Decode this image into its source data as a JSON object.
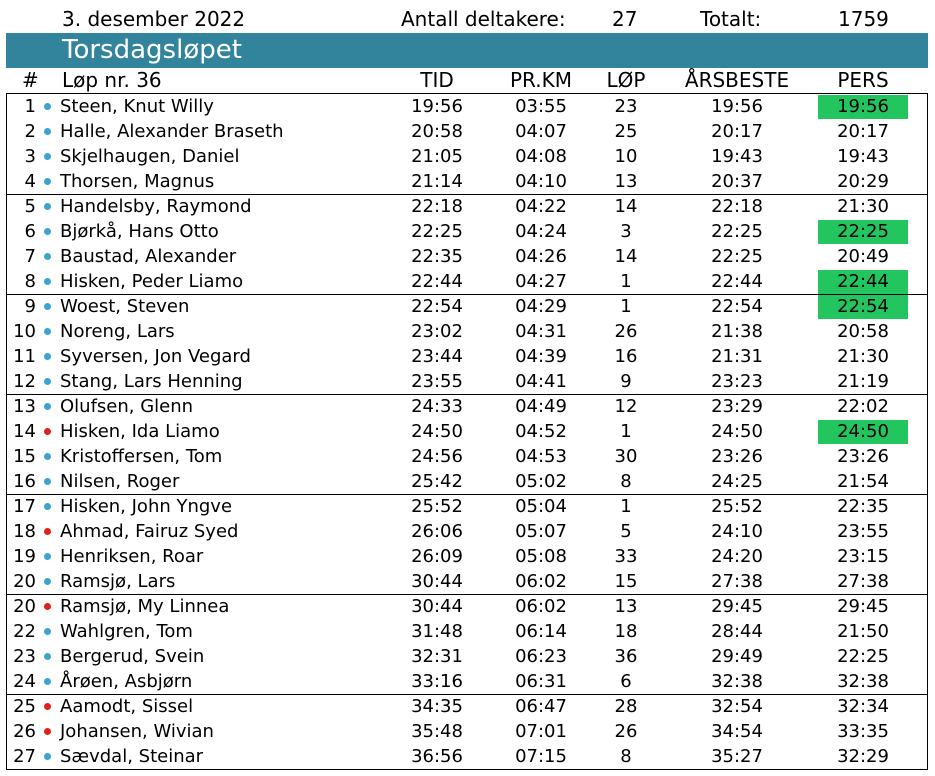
{
  "header": {
    "date": "3. desember 2022",
    "participants_label": "Antall deltakere:",
    "participants_count": "27",
    "total_label": "Totalt:",
    "total_value": "1759",
    "title": "Torsdagsløpet"
  },
  "columns": {
    "rank": "#",
    "race": "Løp nr. 36",
    "time": "TID",
    "per_km": "PR.KM",
    "races": "LØP",
    "season_best": "ÅRSBESTE",
    "personal_best": "PERS"
  },
  "colors": {
    "banner": "#31849b",
    "male_dot": "#3ba3d0",
    "female_dot": "#e0201b",
    "pb_highlight": "#22c55e"
  },
  "rows": [
    {
      "rank": "1",
      "name": "Steen, Knut Willy",
      "gender": "m",
      "time": "19:56",
      "pace": "03:55",
      "races": "23",
      "season": "19:56",
      "pers": "19:56",
      "pb": true
    },
    {
      "rank": "2",
      "name": "Halle, Alexander Braseth",
      "gender": "m",
      "time": "20:58",
      "pace": "04:07",
      "races": "25",
      "season": "20:17",
      "pers": "20:17",
      "pb": false
    },
    {
      "rank": "3",
      "name": "Skjelhaugen, Daniel",
      "gender": "m",
      "time": "21:05",
      "pace": "04:08",
      "races": "10",
      "season": "19:43",
      "pers": "19:43",
      "pb": false
    },
    {
      "rank": "4",
      "name": "Thorsen, Magnus",
      "gender": "m",
      "time": "21:14",
      "pace": "04:10",
      "races": "13",
      "season": "20:37",
      "pers": "20:29",
      "pb": false
    },
    {
      "rank": "5",
      "name": "Handelsby, Raymond",
      "gender": "m",
      "time": "22:18",
      "pace": "04:22",
      "races": "14",
      "season": "22:18",
      "pers": "21:30",
      "pb": false
    },
    {
      "rank": "6",
      "name": "Bjørkå, Hans Otto",
      "gender": "m",
      "time": "22:25",
      "pace": "04:24",
      "races": "3",
      "season": "22:25",
      "pers": "22:25",
      "pb": true
    },
    {
      "rank": "7",
      "name": "Baustad, Alexander",
      "gender": "m",
      "time": "22:35",
      "pace": "04:26",
      "races": "14",
      "season": "22:25",
      "pers": "20:49",
      "pb": false
    },
    {
      "rank": "8",
      "name": "Hisken, Peder Liamo",
      "gender": "m",
      "time": "22:44",
      "pace": "04:27",
      "races": "1",
      "season": "22:44",
      "pers": "22:44",
      "pb": true
    },
    {
      "rank": "9",
      "name": "Woest, Steven",
      "gender": "m",
      "time": "22:54",
      "pace": "04:29",
      "races": "1",
      "season": "22:54",
      "pers": "22:54",
      "pb": true
    },
    {
      "rank": "10",
      "name": "Noreng, Lars",
      "gender": "m",
      "time": "23:02",
      "pace": "04:31",
      "races": "26",
      "season": "21:38",
      "pers": "20:58",
      "pb": false
    },
    {
      "rank": "11",
      "name": "Syversen, Jon Vegard",
      "gender": "m",
      "time": "23:44",
      "pace": "04:39",
      "races": "16",
      "season": "21:31",
      "pers": "21:30",
      "pb": false
    },
    {
      "rank": "12",
      "name": "Stang, Lars Henning",
      "gender": "m",
      "time": "23:55",
      "pace": "04:41",
      "races": "9",
      "season": "23:23",
      "pers": "21:19",
      "pb": false
    },
    {
      "rank": "13",
      "name": "Olufsen, Glenn",
      "gender": "m",
      "time": "24:33",
      "pace": "04:49",
      "races": "12",
      "season": "23:29",
      "pers": "22:02",
      "pb": false
    },
    {
      "rank": "14",
      "name": "Hisken, Ida Liamo",
      "gender": "f",
      "time": "24:50",
      "pace": "04:52",
      "races": "1",
      "season": "24:50",
      "pers": "24:50",
      "pb": true
    },
    {
      "rank": "15",
      "name": "Kristoffersen, Tom",
      "gender": "m",
      "time": "24:56",
      "pace": "04:53",
      "races": "30",
      "season": "23:26",
      "pers": "23:26",
      "pb": false
    },
    {
      "rank": "16",
      "name": "Nilsen, Roger",
      "gender": "m",
      "time": "25:42",
      "pace": "05:02",
      "races": "8",
      "season": "24:25",
      "pers": "21:54",
      "pb": false
    },
    {
      "rank": "17",
      "name": "Hisken, John Yngve",
      "gender": "m",
      "time": "25:52",
      "pace": "05:04",
      "races": "1",
      "season": "25:52",
      "pers": "22:35",
      "pb": false
    },
    {
      "rank": "18",
      "name": "Ahmad, Fairuz Syed",
      "gender": "f",
      "time": "26:06",
      "pace": "05:07",
      "races": "5",
      "season": "24:10",
      "pers": "23:55",
      "pb": false
    },
    {
      "rank": "19",
      "name": "Henriksen, Roar",
      "gender": "m",
      "time": "26:09",
      "pace": "05:08",
      "races": "33",
      "season": "24:20",
      "pers": "23:15",
      "pb": false
    },
    {
      "rank": "20",
      "name": "Ramsjø, Lars",
      "gender": "m",
      "time": "30:44",
      "pace": "06:02",
      "races": "15",
      "season": "27:38",
      "pers": "27:38",
      "pb": false
    },
    {
      "rank": "20",
      "name": "Ramsjø, My Linnea",
      "gender": "f",
      "time": "30:44",
      "pace": "06:02",
      "races": "13",
      "season": "29:45",
      "pers": "29:45",
      "pb": false
    },
    {
      "rank": "22",
      "name": "Wahlgren, Tom",
      "gender": "m",
      "time": "31:48",
      "pace": "06:14",
      "races": "18",
      "season": "28:44",
      "pers": "21:50",
      "pb": false
    },
    {
      "rank": "23",
      "name": "Bergerud, Svein",
      "gender": "m",
      "time": "32:31",
      "pace": "06:23",
      "races": "36",
      "season": "29:49",
      "pers": "22:25",
      "pb": false
    },
    {
      "rank": "24",
      "name": "Årøen, Asbjørn",
      "gender": "m",
      "time": "33:16",
      "pace": "06:31",
      "races": "6",
      "season": "32:38",
      "pers": "32:38",
      "pb": false
    },
    {
      "rank": "25",
      "name": "Aamodt, Sissel",
      "gender": "f",
      "time": "34:35",
      "pace": "06:47",
      "races": "28",
      "season": "32:54",
      "pers": "32:34",
      "pb": false
    },
    {
      "rank": "26",
      "name": "Johansen, Wivian",
      "gender": "f",
      "time": "35:48",
      "pace": "07:01",
      "races": "26",
      "season": "34:54",
      "pers": "33:35",
      "pb": false
    },
    {
      "rank": "27",
      "name": "Sævdal, Steinar",
      "gender": "m",
      "time": "36:56",
      "pace": "07:15",
      "races": "8",
      "season": "35:27",
      "pers": "32:29",
      "pb": false
    }
  ]
}
